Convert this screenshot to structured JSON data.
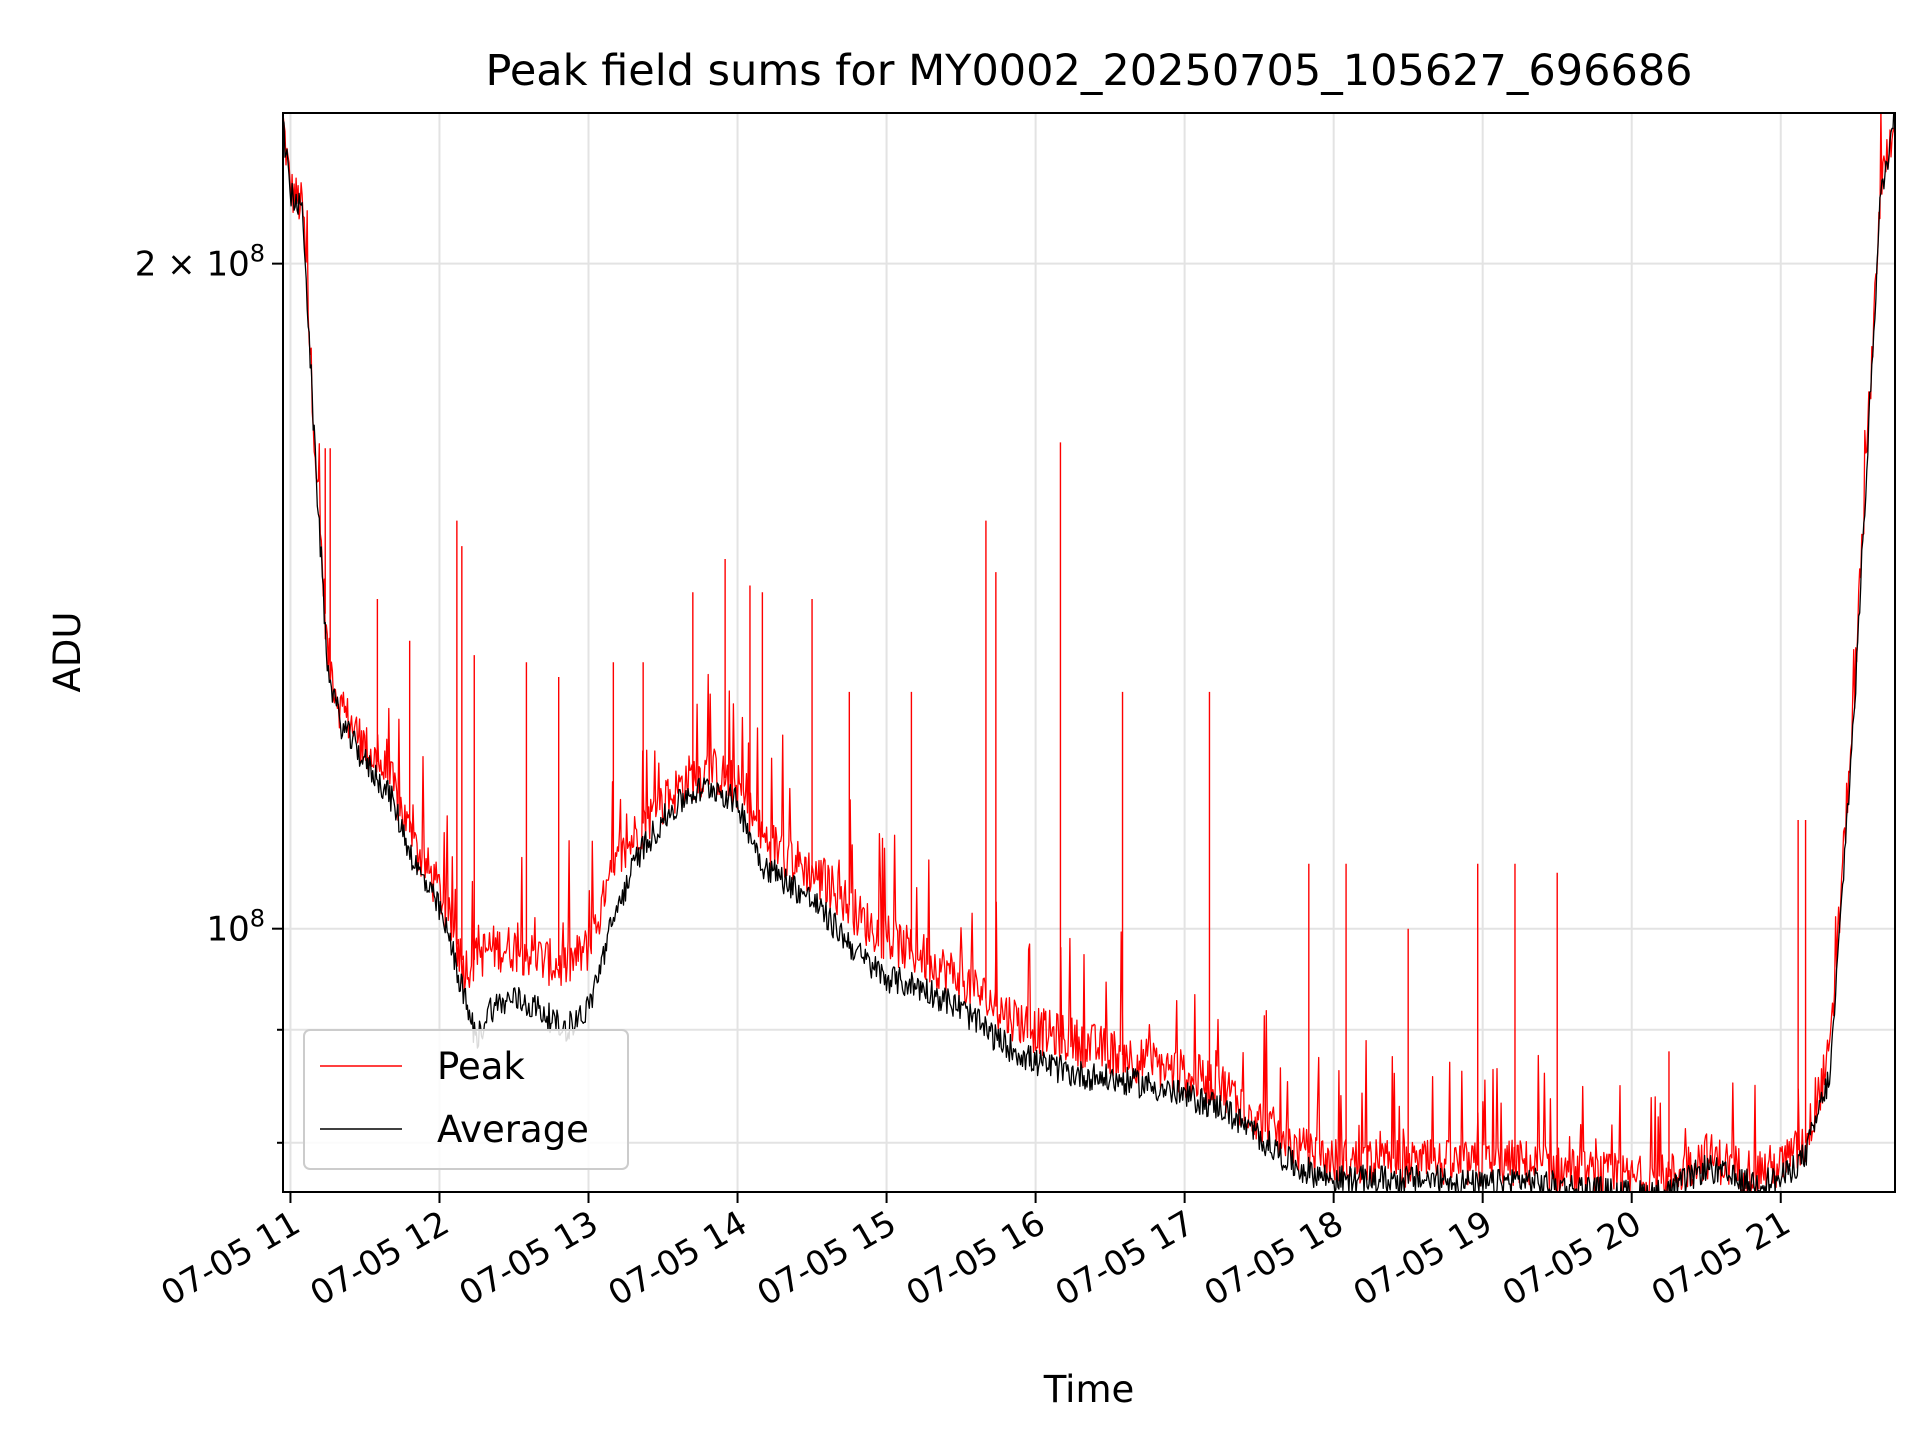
{
  "chart_data": {
    "type": "line",
    "title": "Peak field sums for MY0002_20250705_105627_696686",
    "xlabel": "Time",
    "ylabel": "ADU",
    "y_scale": "log",
    "grid": true,
    "legend_position": "lower-left",
    "x_range": [
      "2025-07-05 10:57",
      "2025-07-05 21:46"
    ],
    "y_range": [
      76000000,
      234000000
    ],
    "x_ticks": [
      {
        "value": "2025-07-05 11:00",
        "label": "07-05 11"
      },
      {
        "value": "2025-07-05 12:00",
        "label": "07-05 12"
      },
      {
        "value": "2025-07-05 13:00",
        "label": "07-05 13"
      },
      {
        "value": "2025-07-05 14:00",
        "label": "07-05 14"
      },
      {
        "value": "2025-07-05 15:00",
        "label": "07-05 15"
      },
      {
        "value": "2025-07-05 16:00",
        "label": "07-05 16"
      },
      {
        "value": "2025-07-05 17:00",
        "label": "07-05 17"
      },
      {
        "value": "2025-07-05 18:00",
        "label": "07-05 18"
      },
      {
        "value": "2025-07-05 19:00",
        "label": "07-05 19"
      },
      {
        "value": "2025-07-05 20:00",
        "label": "07-05 20"
      },
      {
        "value": "2025-07-05 21:00",
        "label": "07-05 21"
      }
    ],
    "y_ticks_major": [
      {
        "value": 100000000,
        "base": "10",
        "exp": "8",
        "prefix": ""
      },
      {
        "value": 200000000,
        "base": "10",
        "exp": "8",
        "prefix": "2 × "
      }
    ],
    "y_ticks_minor": [
      80000000,
      90000000
    ],
    "series": [
      {
        "name": "Peak",
        "color": "#ff0000",
        "x": [
          "2025-07-05 10:57",
          "2025-07-05 11:00",
          "2025-07-05 11:05",
          "2025-07-05 11:10",
          "2025-07-05 11:15",
          "2025-07-05 11:20",
          "2025-07-05 11:30",
          "2025-07-05 11:40",
          "2025-07-05 11:50",
          "2025-07-05 12:00",
          "2025-07-05 12:05",
          "2025-07-05 12:10",
          "2025-07-05 12:15",
          "2025-07-05 12:20",
          "2025-07-05 12:30",
          "2025-07-05 12:40",
          "2025-07-05 12:50",
          "2025-07-05 13:00",
          "2025-07-05 13:10",
          "2025-07-05 13:20",
          "2025-07-05 13:30",
          "2025-07-05 13:40",
          "2025-07-05 13:50",
          "2025-07-05 14:00",
          "2025-07-05 14:10",
          "2025-07-05 14:20",
          "2025-07-05 14:30",
          "2025-07-05 14:40",
          "2025-07-05 14:50",
          "2025-07-05 15:00",
          "2025-07-05 15:15",
          "2025-07-05 15:30",
          "2025-07-05 15:45",
          "2025-07-05 16:00",
          "2025-07-05 16:15",
          "2025-07-05 16:30",
          "2025-07-05 16:45",
          "2025-07-05 17:00",
          "2025-07-05 17:15",
          "2025-07-05 17:30",
          "2025-07-05 17:45",
          "2025-07-05 18:00",
          "2025-07-05 18:15",
          "2025-07-05 18:30",
          "2025-07-05 18:45",
          "2025-07-05 19:00",
          "2025-07-05 19:15",
          "2025-07-05 19:30",
          "2025-07-05 19:45",
          "2025-07-05 20:00",
          "2025-07-05 20:15",
          "2025-07-05 20:30",
          "2025-07-05 20:45",
          "2025-07-05 21:00",
          "2025-07-05 21:10",
          "2025-07-05 21:20",
          "2025-07-05 21:30",
          "2025-07-05 21:40",
          "2025-07-05 21:46"
        ],
        "y": [
          232000000,
          216000000,
          212000000,
          165000000,
          133000000,
          126000000,
          121000000,
          117000000,
          109000000,
          104000000,
          100000000,
          96000000,
          97000000,
          98000000,
          98000000,
          97000000,
          96000000,
          98000000,
          106000000,
          111000000,
          114000000,
          117000000,
          118000000,
          116000000,
          110000000,
          108000000,
          106000000,
          104000000,
          101000000,
          99000000,
          97000000,
          95000000,
          92000000,
          90000000,
          89000000,
          88000000,
          87000000,
          86000000,
          85000000,
          82000000,
          79500000,
          78500000,
          78500000,
          78300000,
          78300000,
          78100000,
          78400000,
          77800000,
          77400000,
          77000000,
          77200000,
          79000000,
          77700000,
          78000000,
          80000000,
          88000000,
          130000000,
          215000000,
          234000000
        ]
      },
      {
        "name": "Average",
        "color": "#000000",
        "x": [
          "2025-07-05 10:57",
          "2025-07-05 11:00",
          "2025-07-05 11:05",
          "2025-07-05 11:10",
          "2025-07-05 11:15",
          "2025-07-05 11:20",
          "2025-07-05 11:30",
          "2025-07-05 11:40",
          "2025-07-05 11:50",
          "2025-07-05 12:00",
          "2025-07-05 12:05",
          "2025-07-05 12:10",
          "2025-07-05 12:15",
          "2025-07-05 12:20",
          "2025-07-05 12:30",
          "2025-07-05 12:40",
          "2025-07-05 12:50",
          "2025-07-05 13:00",
          "2025-07-05 13:10",
          "2025-07-05 13:20",
          "2025-07-05 13:30",
          "2025-07-05 13:40",
          "2025-07-05 13:50",
          "2025-07-05 14:00",
          "2025-07-05 14:10",
          "2025-07-05 14:20",
          "2025-07-05 14:30",
          "2025-07-05 14:40",
          "2025-07-05 14:50",
          "2025-07-05 15:00",
          "2025-07-05 15:15",
          "2025-07-05 15:30",
          "2025-07-05 15:45",
          "2025-07-05 16:00",
          "2025-07-05 16:15",
          "2025-07-05 16:30",
          "2025-07-05 16:45",
          "2025-07-05 17:00",
          "2025-07-05 17:15",
          "2025-07-05 17:30",
          "2025-07-05 17:45",
          "2025-07-05 18:00",
          "2025-07-05 18:15",
          "2025-07-05 18:30",
          "2025-07-05 18:45",
          "2025-07-05 19:00",
          "2025-07-05 19:15",
          "2025-07-05 19:30",
          "2025-07-05 19:45",
          "2025-07-05 20:00",
          "2025-07-05 20:15",
          "2025-07-05 20:30",
          "2025-07-05 20:45",
          "2025-07-05 21:00",
          "2025-07-05 21:10",
          "2025-07-05 21:20",
          "2025-07-05 21:30",
          "2025-07-05 21:40",
          "2025-07-05 21:46"
        ],
        "y": [
          231000000,
          215000000,
          211000000,
          163000000,
          131000000,
          124000000,
          119000000,
          115000000,
          107000000,
          102000000,
          98000000,
          93000000,
          89000000,
          92000000,
          93000000,
          92000000,
          90000000,
          92000000,
          101000000,
          108000000,
          112000000,
          115000000,
          116000000,
          114000000,
          107000000,
          105000000,
          103000000,
          100000000,
          97000000,
          95000000,
          94000000,
          92000000,
          89000000,
          87000000,
          86000000,
          85500000,
          85000000,
          84000000,
          83000000,
          80500000,
          78000000,
          77000000,
          77000000,
          77000000,
          77000000,
          76500000,
          77000000,
          76500000,
          76200000,
          75800000,
          76000000,
          78000000,
          76700000,
          77000000,
          79000000,
          86000000,
          128000000,
          213000000,
          234000000
        ]
      }
    ],
    "spikes": {
      "x": [
        "2025-07-05 11:14",
        "2025-07-05 11:16",
        "2025-07-05 11:35",
        "2025-07-05 11:48",
        "2025-07-05 12:07",
        "2025-07-05 12:09",
        "2025-07-05 12:14",
        "2025-07-05 12:35",
        "2025-07-05 12:48",
        "2025-07-05 13:10",
        "2025-07-05 13:22",
        "2025-07-05 13:42",
        "2025-07-05 13:55",
        "2025-07-05 14:05",
        "2025-07-05 14:10",
        "2025-07-05 14:30",
        "2025-07-05 14:45",
        "2025-07-05 15:10",
        "2025-07-05 15:40",
        "2025-07-05 15:44",
        "2025-07-05 16:10",
        "2025-07-05 16:35",
        "2025-07-05 17:10",
        "2025-07-05 17:50",
        "2025-07-05 18:05",
        "2025-07-05 18:30",
        "2025-07-05 18:58",
        "2025-07-05 19:13",
        "19:30",
        "2025-07-05 20:15",
        "2025-07-05 21:07",
        "2025-07-05 21:10"
      ],
      "y": [
        165000000,
        165000000,
        141000000,
        135000000,
        153000000,
        149000000,
        133000000,
        132000000,
        130000000,
        132000000,
        132000000,
        142000000,
        147000000,
        143000000,
        142000000,
        141000000,
        128000000,
        128000000,
        153000000,
        145000000,
        166000000,
        128000000,
        128000000,
        107000000,
        107000000,
        100000000,
        107000000,
        107000000,
        106000000,
        88000000,
        112000000,
        112000000
      ]
    }
  },
  "legend": {
    "peak_label": "Peak",
    "average_label": "Average"
  }
}
